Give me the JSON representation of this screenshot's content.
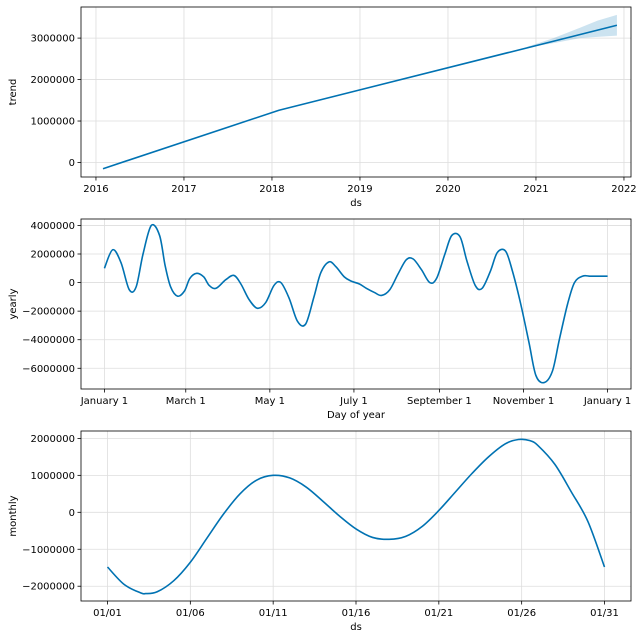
{
  "colors": {
    "line": "#0072B2",
    "band": "#0072B2"
  },
  "chart_data": [
    {
      "type": "line",
      "ylabel": "trend",
      "xlabel": "ds",
      "x_type": "year",
      "xlim": [
        2015.83,
        2022.08
      ],
      "ylim": [
        -350000,
        3750000
      ],
      "xticks": [
        2016,
        2017,
        2018,
        2019,
        2020,
        2021,
        2022
      ],
      "xtick_labels": [
        "2016",
        "2017",
        "2018",
        "2019",
        "2020",
        "2021",
        "2022"
      ],
      "yticks": [
        0,
        1000000,
        2000000,
        3000000
      ],
      "ytick_labels": [
        "0",
        "1000000",
        "2000000",
        "3000000"
      ],
      "grid": true,
      "series": [
        {
          "x": [
            2016.08,
            2018.08,
            2021.92
          ],
          "y": [
            -150000,
            1260000,
            3310000
          ]
        }
      ],
      "uncertainty": {
        "x": [
          2020.9,
          2021.2,
          2021.5,
          2021.7,
          2021.92
        ],
        "lower": [
          2770000,
          2880000,
          3000000,
          3030000,
          3060000
        ],
        "upper": [
          2790000,
          3000000,
          3250000,
          3420000,
          3560000
        ]
      }
    },
    {
      "type": "line",
      "ylabel": "yearly",
      "xlabel": "Day of year",
      "x_type": "day",
      "xlim": [
        -17,
        382
      ],
      "ylim": [
        -7450000,
        4450000
      ],
      "xticks": [
        0,
        59,
        120,
        181,
        243,
        304,
        365
      ],
      "xtick_labels": [
        "January 1",
        "March 1",
        "May 1",
        "July 1",
        "September 1",
        "November 1",
        "January 1"
      ],
      "yticks": [
        -6000000,
        -4000000,
        -2000000,
        0,
        2000000,
        4000000
      ],
      "ytick_labels": [
        "−6000000",
        "−4000000",
        "−2000000",
        "0",
        "2000000",
        "4000000"
      ],
      "grid": true,
      "series": [
        {
          "x": [
            0,
            6,
            12,
            18,
            23,
            28,
            34,
            40,
            44,
            48,
            53,
            58,
            62,
            67,
            72,
            76,
            81,
            88,
            94,
            99,
            105,
            111,
            117,
            123,
            128,
            134,
            140,
            146,
            152,
            157,
            163,
            168,
            174,
            179,
            185,
            190,
            196,
            201,
            207,
            213,
            219,
            224,
            230,
            236,
            241,
            247,
            252,
            258,
            263,
            269,
            274,
            280,
            285,
            291,
            296,
            302,
            308,
            313,
            319,
            325,
            330,
            336,
            341,
            347,
            352,
            358,
            365
          ],
          "y": [
            1000000,
            2300000,
            1400000,
            -500000,
            -300000,
            2000000,
            4000000,
            3300000,
            1200000,
            -300000,
            -950000,
            -600000,
            300000,
            650000,
            400000,
            -200000,
            -400000,
            200000,
            500000,
            -100000,
            -1200000,
            -1800000,
            -1400000,
            -200000,
            0,
            -1100000,
            -2700000,
            -2900000,
            -1000000,
            700000,
            1450000,
            1100000,
            400000,
            100000,
            -100000,
            -400000,
            -700000,
            -900000,
            -500000,
            600000,
            1600000,
            1650000,
            900000,
            0,
            300000,
            2000000,
            3300000,
            3200000,
            1500000,
            -200000,
            -400000,
            800000,
            2100000,
            2200000,
            800000,
            -1500000,
            -4200000,
            -6500000,
            -7000000,
            -6200000,
            -4000000,
            -1500000,
            0,
            450000,
            450000,
            450000,
            450000
          ]
        }
      ]
    },
    {
      "type": "line",
      "ylabel": "monthly",
      "xlabel": "ds",
      "x_type": "day-of-month",
      "xlim": [
        -1.6,
        31.6
      ],
      "ylim": [
        -2400000,
        2200000
      ],
      "xticks": [
        0,
        5,
        10,
        15,
        20,
        25,
        30
      ],
      "xtick_labels": [
        "01/01",
        "01/06",
        "01/11",
        "01/16",
        "01/21",
        "01/26",
        "01/31"
      ],
      "yticks": [
        -2000000,
        -1000000,
        0,
        1000000,
        2000000
      ],
      "ytick_labels": [
        "−2000000",
        "−1000000",
        "0",
        "1000000",
        "2000000"
      ],
      "grid": true,
      "series": [
        {
          "x": [
            0,
            1,
            2,
            2.3,
            3,
            4,
            5,
            6,
            7,
            8,
            9,
            10,
            11,
            12,
            13,
            14,
            15,
            16,
            17,
            18,
            19,
            20,
            21,
            22,
            23,
            24,
            24.8,
            25.5,
            26,
            27,
            28,
            29,
            30
          ],
          "y": [
            -1480000,
            -1950000,
            -2180000,
            -2200000,
            -2150000,
            -1850000,
            -1350000,
            -700000,
            -50000,
            500000,
            870000,
            1000000,
            930000,
            680000,
            300000,
            -100000,
            -450000,
            -680000,
            -730000,
            -650000,
            -380000,
            50000,
            550000,
            1050000,
            1500000,
            1850000,
            1970000,
            1940000,
            1800000,
            1300000,
            550000,
            -250000,
            -1480000
          ]
        }
      ]
    }
  ]
}
